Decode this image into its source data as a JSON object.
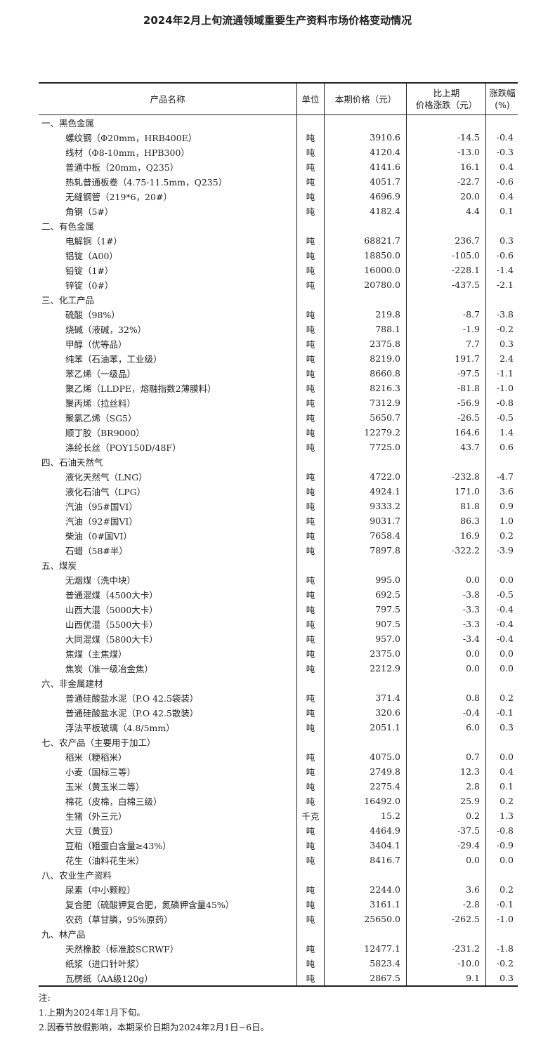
{
  "title": "2024年2月上旬流通领域重要生产资料市场价格变动情况",
  "headers": [
    "产品名称",
    "单位",
    "本期价格（元）",
    "比上期\n价格涨跌（元）",
    "涨跌幅　(%)"
  ],
  "sections": [
    {
      "name": "一、黑色金属",
      "items": [
        [
          "螺纹钢（Φ20mm，HRB400E）",
          "吨",
          "3910.6",
          "-14.5",
          "-0.4"
        ],
        [
          "线材（Φ8-10mm，HPB300）",
          "吨",
          "4120.4",
          "-13.0",
          "-0.3"
        ],
        [
          "普通中板（20mm，Q235）",
          "吨",
          "4141.6",
          "16.1",
          "0.4"
        ],
        [
          "热轧普通板卷（4.75-11.5mm，Q235）",
          "吨",
          "4051.7",
          "-22.7",
          "-0.6"
        ],
        [
          "无缝钢管（219*6，20#）",
          "吨",
          "4696.9",
          "20.0",
          "0.4"
        ],
        [
          "角钢（5#）",
          "吨",
          "4182.4",
          "4.4",
          "0.1"
        ]
      ]
    },
    {
      "name": "二、有色金属",
      "items": [
        [
          "电解铜（1#）",
          "吨",
          "68821.7",
          "236.7",
          "0.3"
        ],
        [
          "铝锭（A00）",
          "吨",
          "18850.0",
          "-105.0",
          "-0.6"
        ],
        [
          "铅锭（1#）",
          "吨",
          "16000.0",
          "-228.1",
          "-1.4"
        ],
        [
          "锌锭（0#）",
          "吨",
          "20780.0",
          "-437.5",
          "-2.1"
        ]
      ]
    },
    {
      "name": "三、化工产品",
      "items": [
        [
          "硫酸（98%）",
          "吨",
          "219.8",
          "-8.7",
          "-3.8"
        ],
        [
          "烧碱（液碱，32%）",
          "吨",
          "788.1",
          "-1.9",
          "-0.2"
        ],
        [
          "甲醇（优等品）",
          "吨",
          "2375.8",
          "7.7",
          "0.3"
        ],
        [
          "纯苯（石油苯，工业级）",
          "吨",
          "8219.0",
          "191.7",
          "2.4"
        ],
        [
          "苯乙烯（一级品）",
          "吨",
          "8660.8",
          "-97.5",
          "-1.1"
        ],
        [
          "聚乙烯（LLDPE，熔融指数2薄膜料）",
          "吨",
          "8216.3",
          "-81.8",
          "-1.0"
        ],
        [
          "聚丙烯（拉丝料）",
          "吨",
          "7312.9",
          "-56.9",
          "-0.8"
        ],
        [
          "聚氯乙烯（SG5）",
          "吨",
          "5650.7",
          "-26.5",
          "-0.5"
        ],
        [
          "顺丁胶（BR9000）",
          "吨",
          "12279.2",
          "164.6",
          "1.4"
        ],
        [
          "涤纶长丝（POY150D/48F）",
          "吨",
          "7725.0",
          "43.7",
          "0.6"
        ]
      ]
    },
    {
      "name": "四、石油天然气",
      "items": [
        [
          "液化天然气（LNG）",
          "吨",
          "4722.0",
          "-232.8",
          "-4.7"
        ],
        [
          "液化石油气（LPG）",
          "吨",
          "4924.1",
          "171.0",
          "3.6"
        ],
        [
          "汽油（95#国VI）",
          "吨",
          "9333.2",
          "81.8",
          "0.9"
        ],
        [
          "汽油（92#国VI）",
          "吨",
          "9031.7",
          "86.3",
          "1.0"
        ],
        [
          "柴油（0#国VI）",
          "吨",
          "7658.4",
          "16.9",
          "0.2"
        ],
        [
          "石蜡（58#半）",
          "吨",
          "7897.8",
          "-322.2",
          "-3.9"
        ]
      ]
    },
    {
      "name": "五、煤炭",
      "items": [
        [
          "无烟煤（洗中块）",
          "吨",
          "995.0",
          "0.0",
          "0.0"
        ],
        [
          "普通混煤（4500大卡）",
          "吨",
          "692.5",
          "-3.8",
          "-0.5"
        ],
        [
          "山西大混（5000大卡）",
          "吨",
          "797.5",
          "-3.3",
          "-0.4"
        ],
        [
          "山西优混（5500大卡）",
          "吨",
          "907.5",
          "-3.3",
          "-0.4"
        ],
        [
          "大同混煤（5800大卡）",
          "吨",
          "957.0",
          "-3.4",
          "-0.4"
        ],
        [
          "焦煤（主焦煤）",
          "吨",
          "2375.0",
          "0.0",
          "0.0"
        ],
        [
          "焦炭（准一级冶金焦）",
          "吨",
          "2212.9",
          "0.0",
          "0.0"
        ]
      ]
    },
    {
      "name": "六、非金属建材",
      "items": [
        [
          "普通硅酸盐水泥（P.O 42.5袋装）",
          "吨",
          "371.4",
          "0.8",
          "0.2"
        ],
        [
          "普通硅酸盐水泥（P.O 42.5散装）",
          "吨",
          "320.6",
          "-0.4",
          "-0.1"
        ],
        [
          "浮法平板玻璃（4.8/5mm）",
          "吨",
          "2051.1",
          "6.0",
          "0.3"
        ]
      ]
    },
    {
      "name": "七、农产品（主要用于加工）",
      "items": [
        [
          "稻米（粳稻米）",
          "吨",
          "4075.0",
          "0.7",
          "0.0"
        ],
        [
          "小麦（国标三等）",
          "吨",
          "2749.8",
          "12.3",
          "0.4"
        ],
        [
          "玉米（黄玉米二等）",
          "吨",
          "2275.4",
          "2.8",
          "0.1"
        ],
        [
          "棉花（皮棉，白棉三级）",
          "吨",
          "16492.0",
          "25.9",
          "0.2"
        ],
        [
          "生猪（外三元）",
          "千克",
          "15.2",
          "0.2",
          "1.3"
        ],
        [
          "大豆（黄豆）",
          "吨",
          "4464.9",
          "-37.5",
          "-0.8"
        ],
        [
          "豆粕（粗蛋白含量≥43%）",
          "吨",
          "3404.1",
          "-29.4",
          "-0.9"
        ],
        [
          "花生（油料花生米）",
          "吨",
          "8416.7",
          "0.0",
          "0.0"
        ]
      ]
    },
    {
      "name": "八、农业生产资料",
      "items": [
        [
          "尿素（中小颗粒）",
          "吨",
          "2244.0",
          "3.6",
          "0.2"
        ],
        [
          "复合肥（硫酸钾复合肥，氮磷钾含量45%）",
          "吨",
          "3161.1",
          "-2.8",
          "-0.1"
        ],
        [
          "农药（草甘膦，95%原药）",
          "吨",
          "25650.0",
          "-262.5",
          "-1.0"
        ]
      ]
    },
    {
      "name": "九、林产品",
      "items": [
        [
          "天然橡胶（标准胶SCRWF）",
          "吨",
          "12477.1",
          "-231.2",
          "-1.8"
        ],
        [
          "纸浆（进口针叶浆）",
          "吨",
          "5823.4",
          "-10.0",
          "-0.2"
        ],
        [
          "瓦楞纸（AA级120g）",
          "吨",
          "2867.5",
          "9.1",
          "0.3"
        ]
      ]
    }
  ],
  "notes": [
    "注:",
    "1.上期为2024年1月下旬。",
    "2.因春节放假影响，本期采价日期为2024年2月1日−6日。"
  ]
}
